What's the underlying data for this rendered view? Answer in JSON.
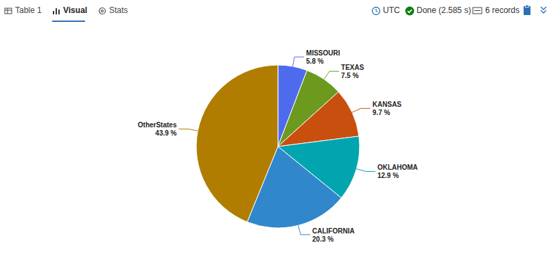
{
  "toolbar": {
    "tabs": [
      "Table 1",
      "Visual",
      "Stats"
    ],
    "active_tab": "Visual",
    "status": [
      "UTC",
      "Done (2.585 s)",
      "6 records"
    ]
  },
  "chart_data": {
    "type": "pie",
    "categories": [
      "MISSOURI",
      "TEXAS",
      "KANSAS",
      "OKLAHOMA",
      "CALIFORNIA",
      "OtherStates"
    ],
    "values": [
      5.8,
      7.5,
      9.7,
      12.9,
      20.3,
      43.9
    ],
    "value_labels": [
      "5.8 %",
      "7.5 %",
      "9.7 %",
      "12.9 %",
      "20.3 %",
      "43.9 %"
    ],
    "colors": [
      "#4f6bed",
      "#6b9a1f",
      "#c94f0f",
      "#00a5b0",
      "#3187cb",
      "#b07d00"
    ],
    "data_labels": true
  }
}
